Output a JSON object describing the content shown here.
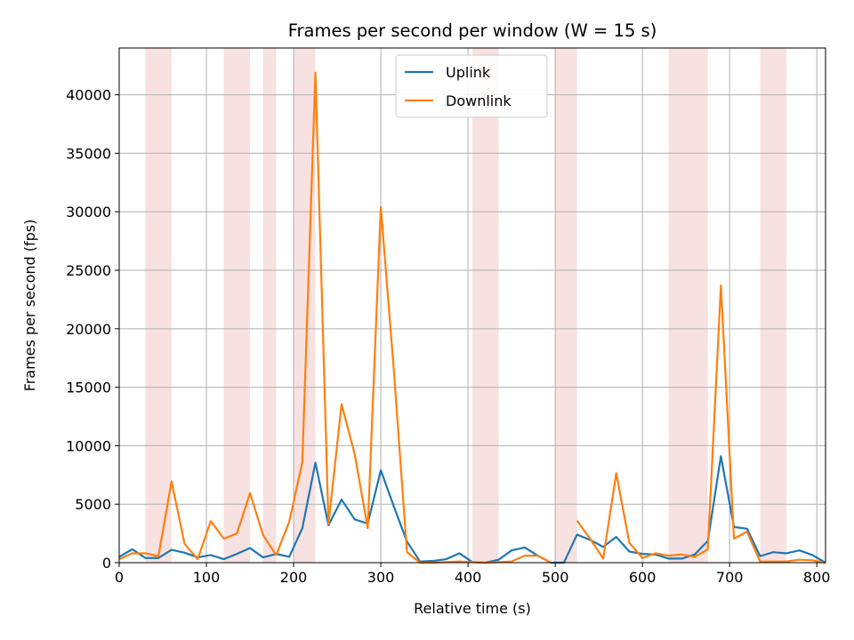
{
  "chart_data": {
    "type": "line",
    "title": "Frames per second per window (W = 15 s)",
    "xlabel": "Relative time (s)",
    "ylabel": "Frames per second (fps)",
    "xlim": [
      0,
      810
    ],
    "ylim": [
      0,
      44000
    ],
    "xticks": [
      0,
      100,
      200,
      300,
      400,
      500,
      600,
      700,
      800
    ],
    "yticks": [
      0,
      5000,
      10000,
      15000,
      20000,
      25000,
      30000,
      35000,
      40000
    ],
    "grid": true,
    "legend_position": "top-center",
    "shaded_intervals": [
      [
        30,
        60
      ],
      [
        120,
        150
      ],
      [
        165,
        180
      ],
      [
        200,
        225
      ],
      [
        405,
        435
      ],
      [
        500,
        525
      ],
      [
        630,
        675
      ],
      [
        735,
        765
      ]
    ],
    "shade_color": "#f8e1e1",
    "series": [
      {
        "name": "Uplink",
        "color": "#1f77b4",
        "x": [
          0,
          15,
          30,
          45,
          60,
          75,
          90,
          105,
          120,
          135,
          150,
          165,
          180,
          195,
          210,
          225,
          240,
          255,
          270,
          285,
          300,
          315,
          330,
          345,
          360,
          375,
          390,
          405,
          420,
          435,
          450,
          465,
          480,
          495,
          510,
          525,
          540,
          555,
          570,
          585,
          600,
          615,
          630,
          645,
          660,
          675,
          690,
          705,
          720,
          735,
          750,
          765,
          780,
          795,
          810
        ],
        "values": [
          500,
          1150,
          400,
          400,
          1100,
          850,
          450,
          650,
          300,
          750,
          1250,
          450,
          750,
          500,
          2950,
          8550,
          3200,
          5400,
          3700,
          3350,
          7900,
          4800,
          1800,
          100,
          150,
          300,
          800,
          50,
          0,
          250,
          1050,
          1300,
          600,
          0,
          0,
          2400,
          1950,
          1350,
          2200,
          950,
          750,
          700,
          350,
          350,
          700,
          1850,
          9100,
          3050,
          2900,
          550,
          900,
          800,
          1050,
          650,
          0
        ]
      },
      {
        "name": "Downlink",
        "color": "#ff7f0e",
        "x": [
          0,
          15,
          30,
          45,
          60,
          75,
          90,
          105,
          120,
          135,
          150,
          165,
          180,
          195,
          210,
          225,
          240,
          255,
          270,
          285,
          300,
          315,
          330,
          345,
          360,
          375,
          390,
          405,
          420,
          435,
          450,
          465,
          480,
          495,
          510,
          525,
          540,
          555,
          570,
          585,
          600,
          615,
          630,
          645,
          660,
          675,
          690,
          705,
          720,
          735,
          750,
          765,
          780,
          795,
          810
        ],
        "values": [
          300,
          800,
          800,
          550,
          6950,
          1600,
          300,
          3550,
          2050,
          2500,
          5950,
          2350,
          650,
          3500,
          8600,
          41900,
          3300,
          13550,
          9300,
          2950,
          30400,
          16400,
          900,
          0,
          0,
          50,
          100,
          50,
          0,
          50,
          100,
          600,
          600,
          0,
          null,
          3600,
          2050,
          350,
          7650,
          1700,
          400,
          800,
          600,
          700,
          500,
          1150,
          23700,
          2050,
          2650,
          100,
          100,
          100,
          250,
          200,
          0
        ]
      }
    ]
  }
}
